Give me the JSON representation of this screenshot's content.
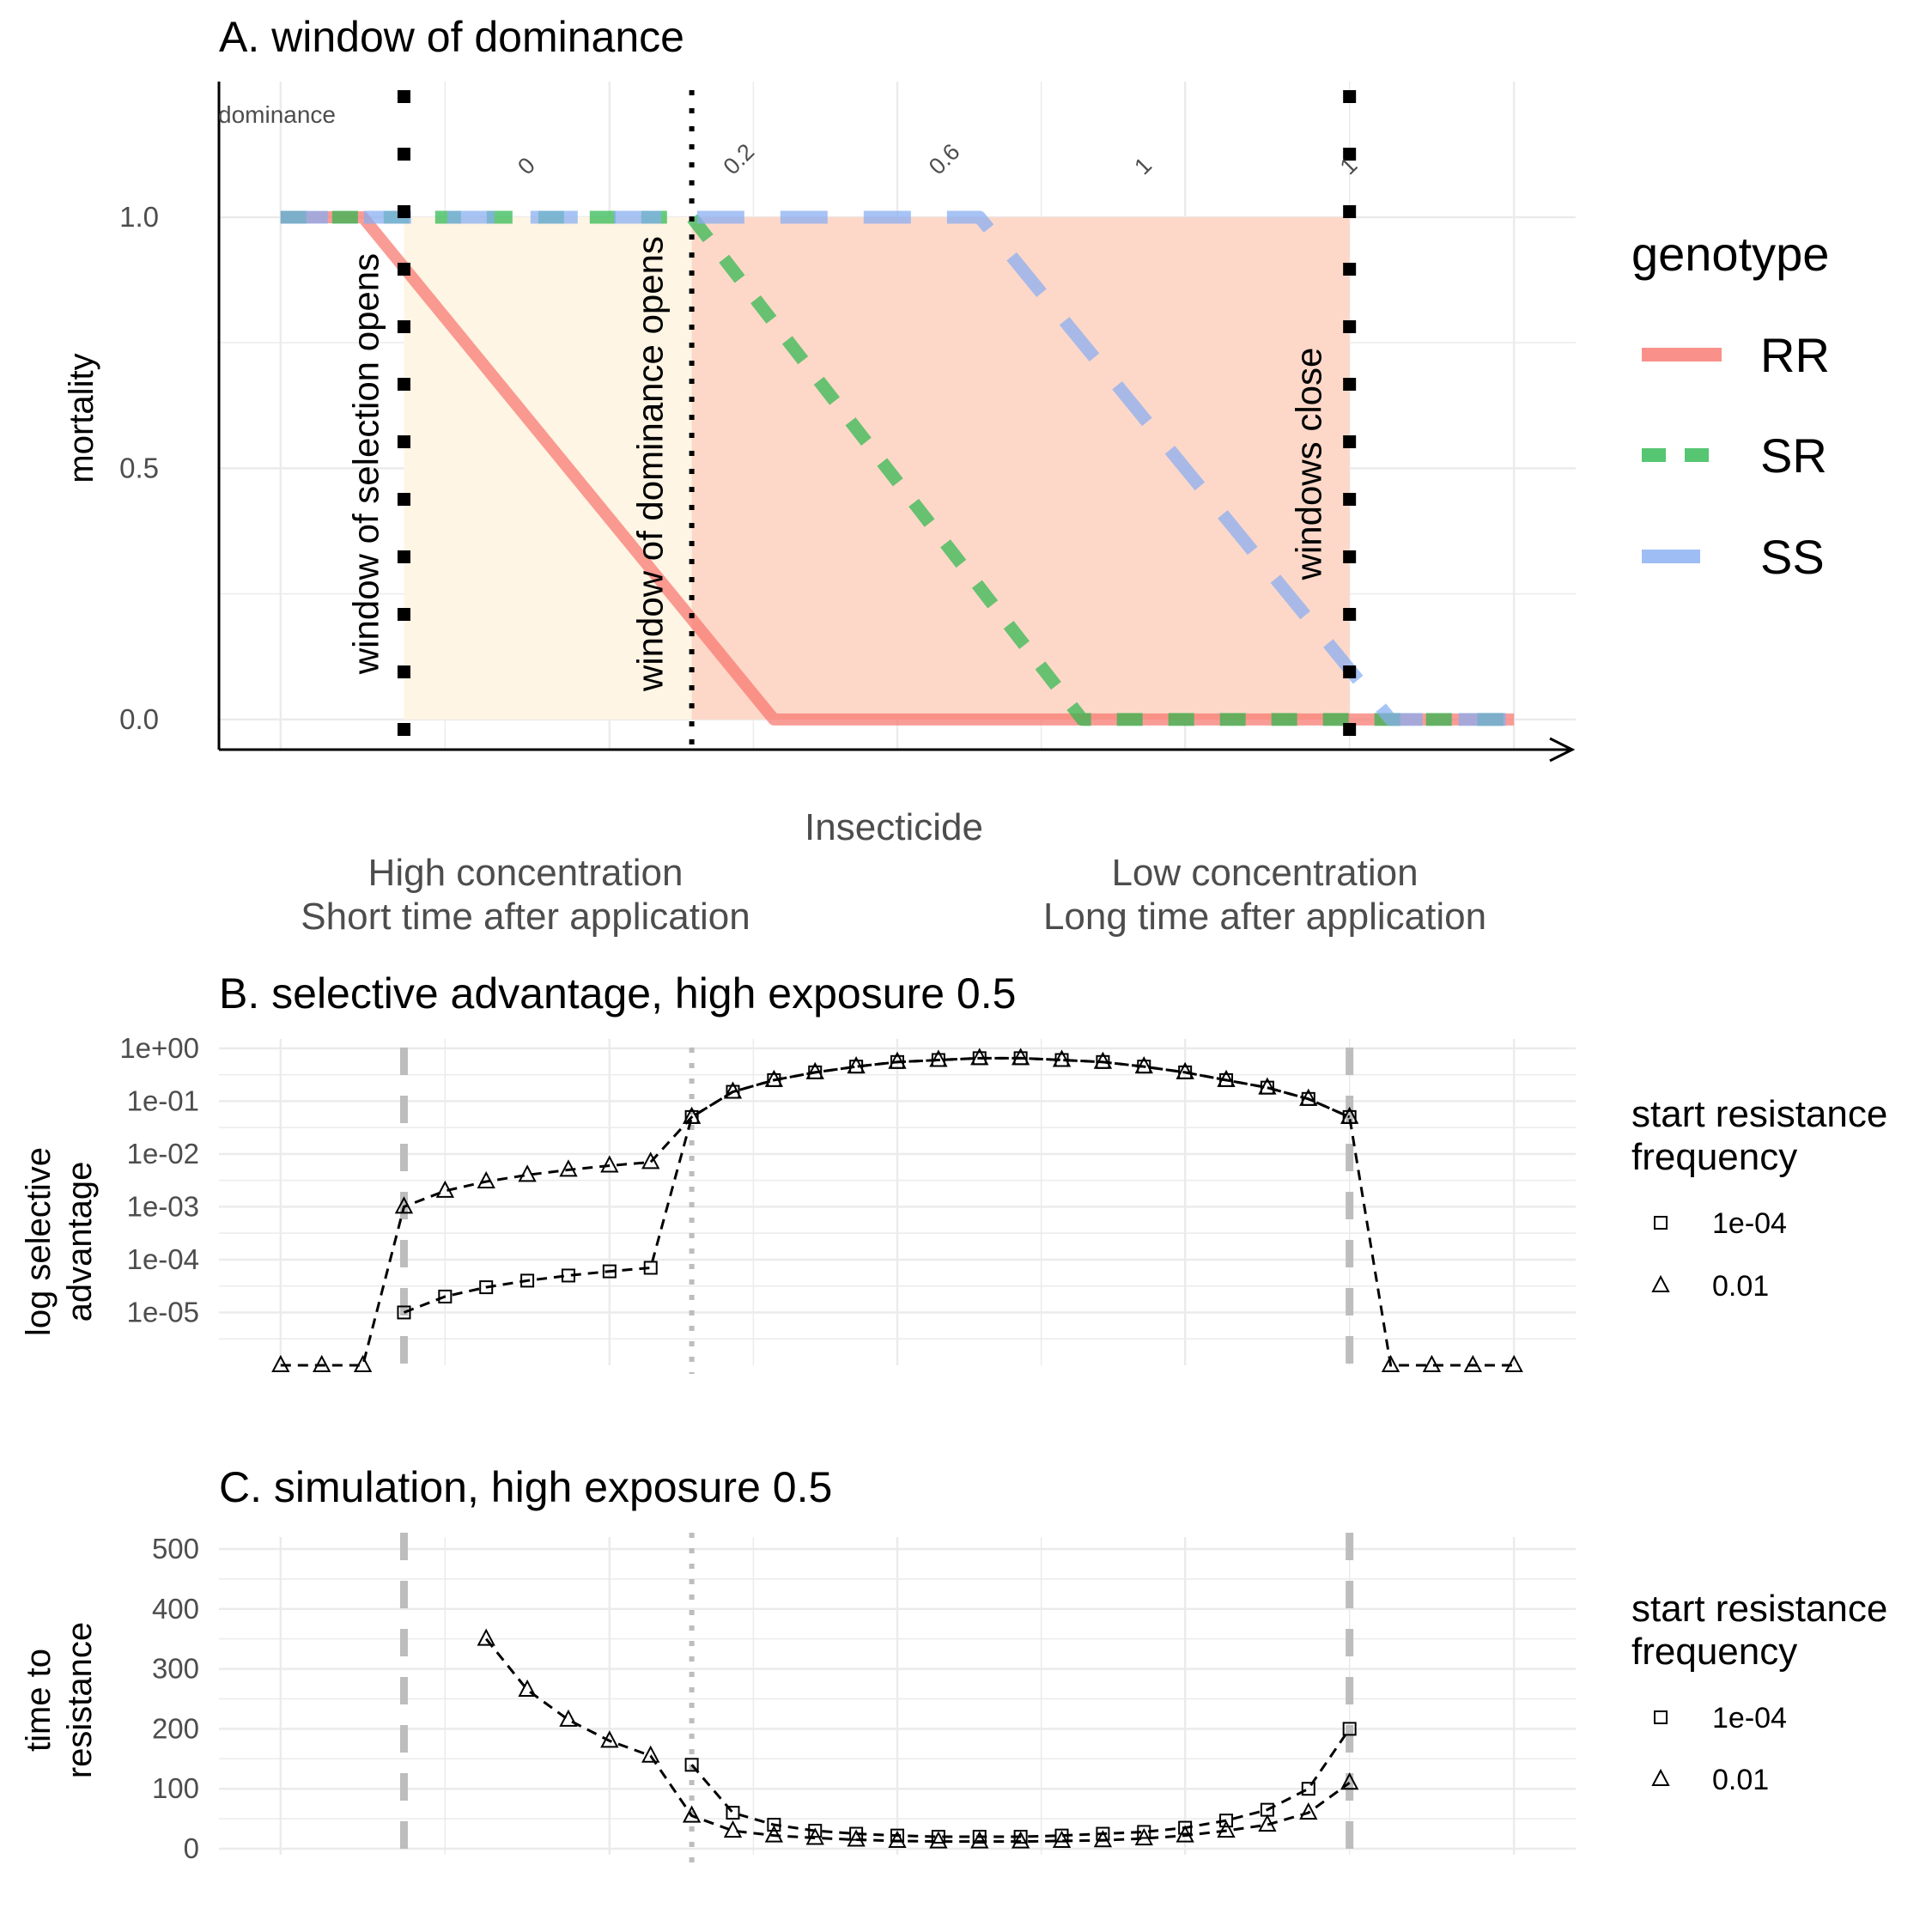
{
  "colors": {
    "RR": "#F8766D",
    "SR": "#2DB84F",
    "SS": "#86ADF2",
    "selection_fill": "#FEF5E4",
    "dominance_fill": "#FDD8C8",
    "grid": "#ebebeb",
    "vline_grey": "#bdbdbd"
  },
  "chart_data": [
    {
      "id": "A",
      "type": "line",
      "title": "A. window of dominance",
      "ylabel": "mortality",
      "xlabel": "Insecticide",
      "x_left_label": [
        "High concentration",
        "Short time after application"
      ],
      "x_right_label": [
        "Low concentration",
        "Long time after application"
      ],
      "xlim": [
        0,
        33
      ],
      "ylim": [
        -0.06,
        1.27
      ],
      "yticks": [
        0.0,
        0.5,
        1.0
      ],
      "ytick_labels": [
        "0.0",
        "0.5",
        "1.0"
      ],
      "legend_title": "genotype",
      "legend_position": "right",
      "series": [
        {
          "name": "RR",
          "style": "solid",
          "x": [
            1.5,
            3.5,
            4.5,
            13.5,
            31.5
          ],
          "y": [
            1.0,
            1.0,
            0.9,
            0.0,
            0.0
          ]
        },
        {
          "name": "SR",
          "style": "dashed",
          "x": [
            1.5,
            11.5,
            21,
            31.5
          ],
          "y": [
            1.0,
            1.0,
            0.0,
            0.0
          ]
        },
        {
          "name": "SS",
          "style": "longdash",
          "x": [
            1.5,
            18.5,
            28.5,
            31.5
          ],
          "y": [
            1.0,
            1.0,
            0.0,
            0.0
          ]
        }
      ],
      "vlines": [
        {
          "x": 4.5,
          "style": "thick-dotted",
          "label": "window of selection opens"
        },
        {
          "x": 11.5,
          "style": "dotted",
          "label": "window of dominance opens"
        },
        {
          "x": 27.5,
          "style": "thick-dotted",
          "label": "windows close"
        }
      ],
      "shaded_regions": [
        {
          "name": "window of selection",
          "x": [
            4.5,
            11.5
          ],
          "y": [
            0,
            1.0
          ]
        },
        {
          "name": "window of dominance",
          "x": [
            11.5,
            27.5
          ],
          "y": [
            0,
            1.0
          ]
        }
      ],
      "dominance_title": "dominance",
      "dominance_labels": [
        {
          "x": 7.5,
          "label": "0"
        },
        {
          "x": 12.5,
          "label": "0.2"
        },
        {
          "x": 17.5,
          "label": "0.6"
        },
        {
          "x": 22.5,
          "label": "1"
        },
        {
          "x": 27.5,
          "label": "1"
        }
      ]
    },
    {
      "id": "B",
      "type": "scatter",
      "title": "B. selective advantage, high exposure 0.5",
      "ylabel": "log selective advantage",
      "log_y": true,
      "ylim": [
        1e-06,
        1.5
      ],
      "ytick_labels": [
        "1e-05",
        "1e-04",
        "1e-03",
        "1e-02",
        "1e-01",
        "1e+00"
      ],
      "legend_title": "start resistance frequency",
      "legend_position": "right",
      "vlines": [
        {
          "x": 4.5,
          "style": "dashed"
        },
        {
          "x": 11.5,
          "style": "dotted"
        },
        {
          "x": 27.5,
          "style": "dashed"
        }
      ],
      "series": [
        {
          "name": "1e-04",
          "marker": "square",
          "x": [
            4.5,
            5.5,
            6.5,
            7.5,
            8.5,
            9.5,
            10.5,
            11.5,
            12.5,
            13.5,
            14.5,
            15.5,
            16.5,
            17.5,
            18.5,
            19.5,
            20.5,
            21.5,
            22.5,
            23.5,
            24.5,
            25.5,
            26.5,
            27.5
          ],
          "y": [
            1e-05,
            2e-05,
            3e-05,
            4e-05,
            5e-05,
            6e-05,
            7e-05,
            0.05,
            0.15,
            0.25,
            0.35,
            0.45,
            0.55,
            0.6,
            0.65,
            0.65,
            0.6,
            0.55,
            0.45,
            0.35,
            0.25,
            0.18,
            0.11,
            0.05
          ]
        },
        {
          "name": "0.01",
          "marker": "triangle",
          "x": [
            1.5,
            2.5,
            3.5,
            4.5,
            5.5,
            6.5,
            7.5,
            8.5,
            9.5,
            10.5,
            11.5,
            12.5,
            13.5,
            14.5,
            15.5,
            16.5,
            17.5,
            18.5,
            19.5,
            20.5,
            21.5,
            22.5,
            23.5,
            24.5,
            25.5,
            26.5,
            27.5,
            28.5,
            29.5,
            30.5,
            31.5
          ],
          "y": [
            1e-06,
            1e-06,
            1e-06,
            0.001,
            0.002,
            0.003,
            0.004,
            0.005,
            0.006,
            0.007,
            0.05,
            0.15,
            0.25,
            0.35,
            0.45,
            0.55,
            0.6,
            0.65,
            0.65,
            0.6,
            0.55,
            0.45,
            0.35,
            0.25,
            0.18,
            0.11,
            0.05,
            1e-06,
            1e-06,
            1e-06,
            1e-06
          ]
        }
      ]
    },
    {
      "id": "C",
      "type": "scatter",
      "title": "C. simulation, high exposure 0.5",
      "ylabel": "time to resistance",
      "ylim": [
        -10,
        520
      ],
      "yticks": [
        0,
        100,
        200,
        300,
        400,
        500
      ],
      "ytick_labels": [
        "0",
        "100",
        "200",
        "300",
        "400",
        "500"
      ],
      "legend_title": "start resistance frequency",
      "legend_position": "right",
      "vlines": [
        {
          "x": 4.5,
          "style": "dashed"
        },
        {
          "x": 11.5,
          "style": "dotted"
        },
        {
          "x": 27.5,
          "style": "dashed"
        }
      ],
      "series": [
        {
          "name": "1e-04",
          "marker": "square",
          "x": [
            11.5,
            12.5,
            13.5,
            14.5,
            15.5,
            16.5,
            17.5,
            18.5,
            19.5,
            20.5,
            21.5,
            22.5,
            23.5,
            24.5,
            25.5,
            26.5,
            27.5
          ],
          "y": [
            140,
            60,
            40,
            30,
            25,
            22,
            20,
            20,
            20,
            22,
            25,
            28,
            35,
            47,
            65,
            100,
            200
          ]
        },
        {
          "name": "0.01",
          "marker": "triangle",
          "x": [
            6.5,
            7.5,
            8.5,
            9.5,
            10.5,
            11.5,
            12.5,
            13.5,
            14.5,
            15.5,
            16.5,
            17.5,
            18.5,
            19.5,
            20.5,
            21.5,
            22.5,
            23.5,
            24.5,
            25.5,
            26.5,
            27.5
          ],
          "y": [
            350,
            265,
            215,
            180,
            155,
            55,
            30,
            22,
            18,
            15,
            13,
            12,
            12,
            12,
            13,
            14,
            17,
            22,
            30,
            40,
            60,
            110
          ]
        }
      ]
    }
  ]
}
